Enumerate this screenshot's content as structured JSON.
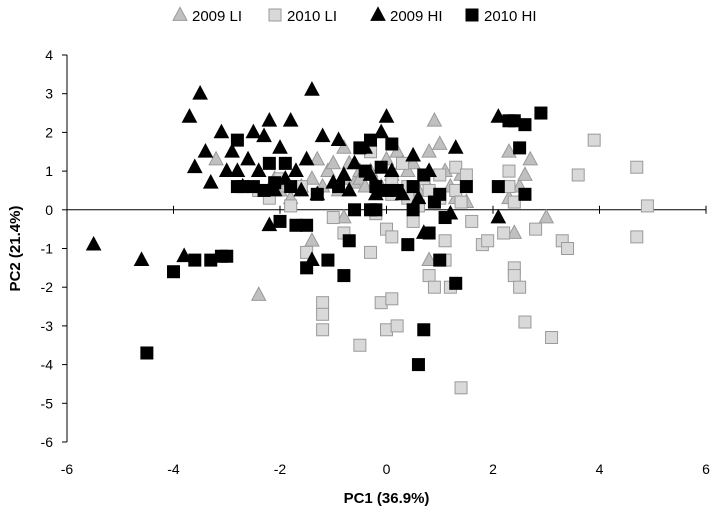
{
  "chart_data": {
    "type": "scatter",
    "xlabel": "PC1 (36.9%)",
    "ylabel": "PC2 (21.4%)",
    "xlim": [
      -6,
      6
    ],
    "ylim": [
      -6,
      4
    ],
    "xticks": [
      -6,
      -4,
      -2,
      0,
      2,
      4,
      6
    ],
    "yticks": [
      -6,
      -5,
      -4,
      -3,
      -2,
      -1,
      0,
      1,
      2,
      3,
      4
    ],
    "grid": false,
    "legend_position": "top",
    "series": [
      {
        "name": "2009 LI",
        "marker": "triangle",
        "color": "#c0c0c0",
        "stroke": "#9a9a9a",
        "points": [
          [
            -3.2,
            1.3
          ],
          [
            -2.4,
            -2.2
          ],
          [
            -2.1,
            0.8
          ],
          [
            -2.0,
            0.5
          ],
          [
            -1.9,
            0.6
          ],
          [
            -1.8,
            0.3
          ],
          [
            -1.7,
            1.0
          ],
          [
            -1.6,
            0.6
          ],
          [
            -1.5,
            1.3
          ],
          [
            -1.4,
            0.8
          ],
          [
            -1.4,
            -0.8
          ],
          [
            -1.3,
            1.3
          ],
          [
            -1.2,
            0.6
          ],
          [
            -1.1,
            1.0
          ],
          [
            -1.0,
            1.2
          ],
          [
            -1.0,
            0.7
          ],
          [
            -0.9,
            0.5
          ],
          [
            -0.8,
            1.6
          ],
          [
            -0.8,
            0.8
          ],
          [
            -0.8,
            -0.2
          ],
          [
            -0.7,
            1.2
          ],
          [
            -0.6,
            0.7
          ],
          [
            -0.5,
            1.0
          ],
          [
            -0.5,
            0.8
          ],
          [
            -0.4,
            0.6
          ],
          [
            -0.3,
            1.0
          ],
          [
            -0.2,
            0.7
          ],
          [
            -0.1,
            0.6
          ],
          [
            0.0,
            1.3
          ],
          [
            0.1,
            0.9
          ],
          [
            0.2,
            1.5
          ],
          [
            0.3,
            1.2
          ],
          [
            0.4,
            1.0
          ],
          [
            0.5,
            1.2
          ],
          [
            0.6,
            0.5
          ],
          [
            0.7,
            0.8
          ],
          [
            0.8,
            1.5
          ],
          [
            0.8,
            -1.3
          ],
          [
            0.9,
            2.3
          ],
          [
            1.0,
            1.7
          ],
          [
            1.1,
            1.0
          ],
          [
            1.2,
            0.6
          ],
          [
            1.3,
            0.3
          ],
          [
            1.4,
            0.9
          ],
          [
            1.5,
            0.2
          ],
          [
            2.3,
            0.3
          ],
          [
            2.3,
            1.5
          ],
          [
            2.4,
            -0.6
          ],
          [
            2.5,
            0.6
          ],
          [
            2.6,
            0.9
          ],
          [
            2.7,
            1.3
          ],
          [
            3.0,
            -0.2
          ]
        ]
      },
      {
        "name": "2010 LI",
        "marker": "square",
        "color": "#d9d9d9",
        "stroke": "#9a9a9a",
        "points": [
          [
            -2.4,
            0.5
          ],
          [
            -2.2,
            0.3
          ],
          [
            -2.0,
            0.8
          ],
          [
            -1.8,
            0.1
          ],
          [
            -1.6,
            0.6
          ],
          [
            -1.5,
            -1.1
          ],
          [
            -1.2,
            -2.4
          ],
          [
            -1.2,
            -2.7
          ],
          [
            -1.2,
            -3.1
          ],
          [
            -1.0,
            -0.2
          ],
          [
            -0.8,
            -0.6
          ],
          [
            -0.5,
            -3.5
          ],
          [
            -0.3,
            -1.1
          ],
          [
            -0.3,
            1.5
          ],
          [
            -0.2,
            -0.1
          ],
          [
            -0.1,
            -2.4
          ],
          [
            0.0,
            -3.1
          ],
          [
            0.0,
            -0.5
          ],
          [
            0.1,
            -2.3
          ],
          [
            0.1,
            -0.7
          ],
          [
            0.1,
            0.4
          ],
          [
            0.1,
            0.7
          ],
          [
            0.2,
            -3.0
          ],
          [
            0.3,
            1.2
          ],
          [
            0.4,
            0.3
          ],
          [
            0.4,
            0.6
          ],
          [
            0.5,
            -0.3
          ],
          [
            0.6,
            0.1
          ],
          [
            0.7,
            0.8
          ],
          [
            0.8,
            0.5
          ],
          [
            0.8,
            -1.7
          ],
          [
            0.9,
            -2.0
          ],
          [
            1.0,
            0.3
          ],
          [
            1.0,
            0.9
          ],
          [
            1.1,
            -0.8
          ],
          [
            1.1,
            -1.3
          ],
          [
            1.2,
            -2.0
          ],
          [
            1.3,
            0.5
          ],
          [
            1.3,
            1.1
          ],
          [
            1.4,
            0.2
          ],
          [
            1.4,
            -4.6
          ],
          [
            1.5,
            0.9
          ],
          [
            1.6,
            -0.3
          ],
          [
            1.8,
            -0.9
          ],
          [
            1.9,
            -0.8
          ],
          [
            2.2,
            -0.6
          ],
          [
            2.3,
            0.6
          ],
          [
            2.3,
            1.0
          ],
          [
            2.4,
            0.2
          ],
          [
            2.4,
            -1.5
          ],
          [
            2.4,
            -1.7
          ],
          [
            2.5,
            -2.0
          ],
          [
            2.6,
            -2.9
          ],
          [
            2.8,
            -0.5
          ],
          [
            3.1,
            -3.3
          ],
          [
            3.3,
            -0.8
          ],
          [
            3.4,
            -1.0
          ],
          [
            3.6,
            0.9
          ],
          [
            3.9,
            1.8
          ],
          [
            4.7,
            1.1
          ],
          [
            4.7,
            -0.7
          ],
          [
            4.9,
            0.1
          ]
        ]
      },
      {
        "name": "2009 HI",
        "marker": "triangle",
        "color": "#000000",
        "stroke": "#000000",
        "points": [
          [
            -5.5,
            -0.9
          ],
          [
            -3.7,
            2.4
          ],
          [
            -3.6,
            1.1
          ],
          [
            -3.5,
            3.0
          ],
          [
            -3.4,
            1.5
          ],
          [
            -3.3,
            0.7
          ],
          [
            -3.1,
            2.0
          ],
          [
            -3.0,
            1.0
          ],
          [
            -2.9,
            1.5
          ],
          [
            -2.8,
            1.0
          ],
          [
            -2.7,
            0.6
          ],
          [
            -2.6,
            1.3
          ],
          [
            -2.5,
            2.0
          ],
          [
            -2.4,
            1.0
          ],
          [
            -2.3,
            1.9
          ],
          [
            -2.2,
            2.3
          ],
          [
            -2.1,
            0.5
          ],
          [
            -2.0,
            1.6
          ],
          [
            -1.9,
            0.8
          ],
          [
            -1.8,
            2.3
          ],
          [
            -1.7,
            1.0
          ],
          [
            -1.6,
            0.5
          ],
          [
            -1.5,
            1.3
          ],
          [
            -1.4,
            3.1
          ],
          [
            -1.3,
            0.4
          ],
          [
            -1.2,
            1.9
          ],
          [
            -1.0,
            0.7
          ],
          [
            -0.9,
            1.8
          ],
          [
            -0.8,
            0.9
          ],
          [
            -0.7,
            0.5
          ],
          [
            -0.6,
            1.2
          ],
          [
            -0.4,
            1.6
          ],
          [
            -0.3,
            0.9
          ],
          [
            -0.2,
            0.4
          ],
          [
            -0.1,
            2.0
          ],
          [
            0.0,
            2.4
          ],
          [
            0.1,
            1.0
          ],
          [
            0.3,
            0.4
          ],
          [
            0.5,
            1.4
          ],
          [
            0.6,
            0.3
          ],
          [
            0.7,
            -0.6
          ],
          [
            0.8,
            1.0
          ],
          [
            1.2,
            -0.1
          ],
          [
            1.3,
            1.6
          ],
          [
            -4.6,
            -1.3
          ],
          [
            -3.8,
            -1.2
          ],
          [
            -2.2,
            -0.4
          ],
          [
            -1.4,
            -1.3
          ],
          [
            2.1,
            -0.2
          ],
          [
            2.1,
            2.4
          ]
        ]
      },
      {
        "name": "2010 HI",
        "marker": "square",
        "color": "#000000",
        "stroke": "#000000",
        "points": [
          [
            -4.5,
            -3.7
          ],
          [
            -4.0,
            -1.6
          ],
          [
            -3.6,
            -1.3
          ],
          [
            -3.3,
            -1.3
          ],
          [
            -3.1,
            -1.2
          ],
          [
            -3.0,
            -1.2
          ],
          [
            -2.8,
            1.8
          ],
          [
            -2.8,
            0.6
          ],
          [
            -2.7,
            0.6
          ],
          [
            -2.5,
            0.6
          ],
          [
            -2.3,
            0.5
          ],
          [
            -2.2,
            1.2
          ],
          [
            -2.1,
            0.7
          ],
          [
            -2.0,
            -0.3
          ],
          [
            -1.9,
            1.2
          ],
          [
            -1.8,
            0.6
          ],
          [
            -1.7,
            -0.4
          ],
          [
            -1.5,
            -1.5
          ],
          [
            -1.5,
            -0.4
          ],
          [
            -1.3,
            0.4
          ],
          [
            -1.1,
            -1.3
          ],
          [
            -0.9,
            0.6
          ],
          [
            -0.8,
            -1.7
          ],
          [
            -0.7,
            -0.8
          ],
          [
            -0.6,
            0.0
          ],
          [
            -0.5,
            1.6
          ],
          [
            -0.4,
            1.0
          ],
          [
            -0.3,
            1.8
          ],
          [
            -0.2,
            0.6
          ],
          [
            -0.2,
            0.0
          ],
          [
            -0.1,
            1.1
          ],
          [
            0.0,
            0.5
          ],
          [
            0.1,
            1.7
          ],
          [
            0.2,
            0.5
          ],
          [
            0.4,
            -0.9
          ],
          [
            0.5,
            0.0
          ],
          [
            0.7,
            0.9
          ],
          [
            0.8,
            -0.6
          ],
          [
            0.9,
            0.2
          ],
          [
            1.0,
            0.4
          ],
          [
            1.0,
            -1.3
          ],
          [
            1.1,
            -0.2
          ],
          [
            1.3,
            -1.9
          ],
          [
            1.5,
            0.6
          ],
          [
            0.7,
            -3.1
          ],
          [
            0.6,
            -4.0
          ],
          [
            2.1,
            0.6
          ],
          [
            2.3,
            2.3
          ],
          [
            2.4,
            2.3
          ],
          [
            2.5,
            1.6
          ],
          [
            2.6,
            0.4
          ],
          [
            2.6,
            2.2
          ],
          [
            2.9,
            2.5
          ],
          [
            -0.3,
            0.0
          ],
          [
            0.5,
            0.6
          ]
        ]
      }
    ]
  }
}
